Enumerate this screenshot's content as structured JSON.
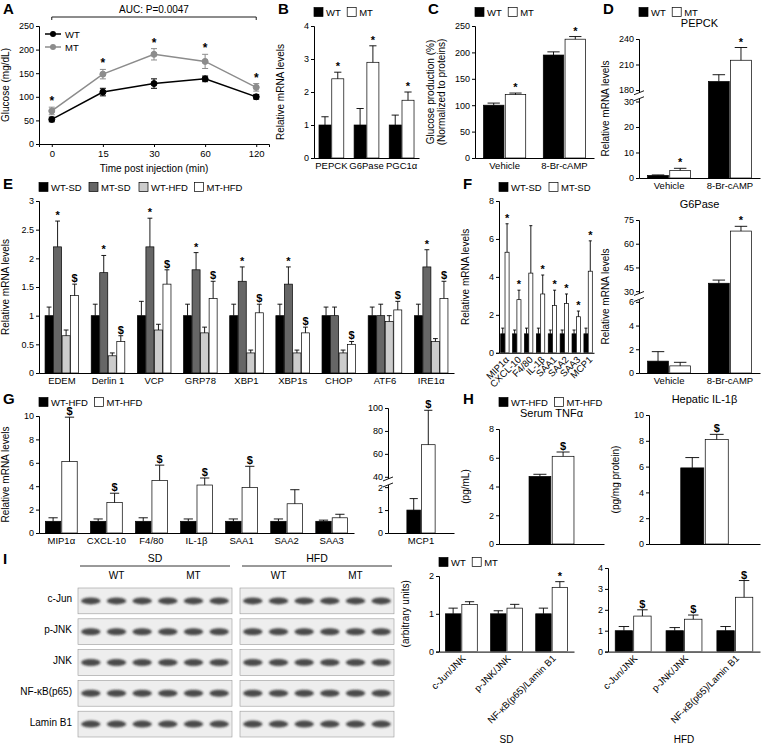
{
  "chart_data": [
    {
      "panel": "A",
      "type": "line",
      "annotation": "AUC: P=0.0047",
      "categories": [
        "0",
        "15",
        "30",
        "60",
        "120"
      ],
      "xlabel": "Time post injection (min)",
      "ylabel": "Glucose (mg/dL)",
      "ylim": [
        0,
        250
      ],
      "yticks": [
        0,
        50,
        100,
        150,
        200,
        250
      ],
      "legend": "top-left",
      "series": [
        {
          "name": "WT",
          "color": "#000000",
          "marker": "circle",
          "values": [
            52,
            110,
            128,
            138,
            100
          ],
          "errors": [
            5,
            8,
            10,
            6,
            5
          ]
        },
        {
          "name": "MT",
          "color": "#8c8c8c",
          "marker": "circle",
          "values": [
            70,
            148,
            190,
            175,
            120
          ],
          "errors": [
            8,
            10,
            12,
            15,
            8
          ],
          "significance": [
            "*",
            "*",
            "*",
            "*",
            "*"
          ]
        }
      ]
    },
    {
      "panel": "B",
      "type": "bar",
      "categories": [
        "PEPCK",
        "G6Pase",
        "PGC1α"
      ],
      "ylabel": "Relative mRNA levels",
      "ylim": [
        0,
        4
      ],
      "yticks": [
        0,
        1,
        2,
        3,
        4
      ],
      "legend": "top",
      "series": [
        {
          "name": "WT",
          "color": "#000000",
          "values": [
            1,
            1,
            1
          ],
          "errors": [
            0.25,
            0.5,
            0.3
          ]
        },
        {
          "name": "MT",
          "color": "#ffffff",
          "values": [
            2.4,
            2.9,
            1.75
          ],
          "errors": [
            0.2,
            0.5,
            0.25
          ],
          "significance": [
            "*",
            "*",
            "*"
          ]
        }
      ]
    },
    {
      "panel": "C",
      "type": "bar",
      "categories": [
        "Vehicle",
        "8-Br-cAMP"
      ],
      "ylabel": [
        "Glucose production (%)",
        "(Normalized to proteins)"
      ],
      "ylim": [
        0,
        250
      ],
      "yticks": [
        0,
        50,
        100,
        150,
        200,
        250
      ],
      "legend": "top",
      "series": [
        {
          "name": "WT",
          "color": "#000000",
          "values": [
            100,
            195
          ],
          "errors": [
            4,
            6
          ]
        },
        {
          "name": "MT",
          "color": "#ffffff",
          "values": [
            120,
            225
          ],
          "errors": [
            3,
            5
          ],
          "significance": [
            "*",
            "*"
          ]
        }
      ]
    },
    {
      "panel": "D",
      "type": "bar",
      "title": "PEPCK",
      "categories": [
        "Vehicle",
        "8-Br-cAMP"
      ],
      "ylabel": "Relative mRNA levels",
      "ylim": [
        0,
        240
      ],
      "yticks": [
        0,
        10,
        20,
        30,
        180,
        210,
        240
      ],
      "legend": "top",
      "series": [
        {
          "name": "WT",
          "color": "#000000",
          "values": [
            1,
            190
          ],
          "errors": [
            0.2,
            8
          ]
        },
        {
          "name": "MT",
          "color": "#ffffff",
          "values": [
            3,
            215
          ],
          "errors": [
            0.8,
            15
          ],
          "significance": [
            "*",
            "*"
          ]
        }
      ]
    },
    {
      "type": "bar",
      "title": "G6Pase",
      "categories": [
        "Vehicle",
        "8-Br-cAMP"
      ],
      "ylabel": "Relative mRNA levels",
      "ylim": [
        0,
        75
      ],
      "yticks": [
        0,
        2,
        4,
        6,
        30,
        45,
        60,
        75
      ],
      "series": [
        {
          "color": "#000000",
          "values": [
            1,
            35
          ],
          "errors": [
            0.8,
            2
          ]
        },
        {
          "color": "#ffffff",
          "values": [
            0.6,
            68
          ],
          "errors": [
            0.3,
            3
          ],
          "significance": [
            null,
            "*"
          ]
        }
      ]
    },
    {
      "panel": "E",
      "type": "bar",
      "categories": [
        "EDEM",
        "Derlin 1",
        "VCP",
        "GRP78",
        "XBP1",
        "XBP1s",
        "CHOP",
        "ATF6",
        "IRE1α"
      ],
      "ylabel": "Relative mRNA levels",
      "ylim": [
        0,
        3
      ],
      "yticks": [
        0,
        0.5,
        1,
        1.5,
        2,
        2.5,
        3
      ],
      "legend": "top",
      "series": [
        {
          "name": "WT-SD",
          "color": "#000000",
          "values": [
            1,
            1,
            1,
            1,
            1,
            1,
            1,
            1,
            1
          ],
          "errors": [
            0.15,
            0.2,
            0.25,
            0.2,
            0.2,
            0.2,
            0.15,
            0.15,
            0.2
          ]
        },
        {
          "name": "MT-SD",
          "color": "#666666",
          "values": [
            2.2,
            1.75,
            2.2,
            1.8,
            1.6,
            1.55,
            1.0,
            1.0,
            1.85
          ],
          "errors": [
            0.45,
            0.3,
            0.5,
            0.3,
            0.25,
            0.3,
            0.15,
            0.2,
            0.3
          ],
          "significance": [
            "*",
            "*",
            "*",
            "*",
            "*",
            "*",
            null,
            null,
            "*"
          ]
        },
        {
          "name": "WT-HFD",
          "color": "#cccccc",
          "values": [
            0.65,
            0.3,
            0.75,
            0.7,
            0.35,
            0.35,
            0.35,
            0.9,
            0.55
          ],
          "errors": [
            0.1,
            0.05,
            0.1,
            0.1,
            0.05,
            0.05,
            0.05,
            0.1,
            0.05
          ]
        },
        {
          "name": "MT-HFD",
          "color": "#ffffff",
          "values": [
            1.35,
            0.55,
            1.55,
            1.3,
            1.05,
            0.7,
            0.5,
            1.1,
            1.3
          ],
          "errors": [
            0.2,
            0.1,
            0.25,
            0.3,
            0.15,
            0.1,
            0.05,
            0.15,
            0.3
          ],
          "significance": [
            "$",
            "$",
            "$",
            "$",
            "$",
            "$",
            "$",
            "$",
            "$"
          ]
        }
      ]
    },
    {
      "panel": "F",
      "type": "bar",
      "categories": [
        "MIP1α",
        "CXCL-10",
        "F4/80",
        "IL-1β",
        "SAA1",
        "SAA2",
        "SAA3",
        "MCP1"
      ],
      "ylabel": "Relative mRNA levels",
      "ylim": [
        0,
        8
      ],
      "yticks": [
        0,
        2,
        4,
        6,
        8
      ],
      "legend": "top",
      "series": [
        {
          "name": "WT-SD",
          "color": "#000000",
          "values": [
            1,
            1,
            1,
            1,
            1,
            1,
            1,
            1
          ],
          "errors": [
            0.3,
            0.2,
            0.3,
            0.3,
            0.2,
            0.2,
            0.2,
            0.3
          ]
        },
        {
          "name": "MT-SD",
          "color": "#ffffff",
          "values": [
            5.3,
            2.8,
            4.2,
            3.1,
            2.5,
            2.6,
            1.9,
            4.3
          ],
          "errors": [
            1.5,
            0.5,
            2.5,
            1.0,
            0.8,
            0.5,
            0.3,
            1.6
          ],
          "significance": [
            "*",
            "*",
            null,
            "*",
            "*",
            "*",
            "*",
            "*"
          ]
        }
      ]
    },
    {
      "panel": "G",
      "type": "bar",
      "categories": [
        "MIP1α",
        "CXCL-10",
        "F4/80",
        "IL-1β",
        "SAA1",
        "SAA2",
        "SAA3"
      ],
      "ylabel": "Relative mRNA levels",
      "ylim": [
        0,
        10
      ],
      "yticks": [
        0,
        2,
        4,
        6,
        8,
        10
      ],
      "legend": "top",
      "series": [
        {
          "name": "WT-HFD",
          "color": "#000000",
          "values": [
            1,
            1,
            1,
            1,
            1,
            1,
            1
          ],
          "errors": [
            0.3,
            0.2,
            0.3,
            0.2,
            0.2,
            0.2,
            0.1
          ]
        },
        {
          "name": "MT-HFD",
          "color": "#ffffff",
          "values": [
            6.1,
            2.6,
            4.5,
            4.1,
            3.9,
            2.5,
            1.3
          ],
          "errors": [
            3.8,
            0.8,
            1.3,
            0.6,
            1.8,
            1.2,
            0.3
          ],
          "significance": [
            "$",
            "$",
            "$",
            "$",
            "$",
            null,
            null
          ]
        }
      ]
    },
    {
      "type": "bar",
      "categories": [
        "MCP1"
      ],
      "ylim": [
        0,
        100
      ],
      "yticks": [
        0,
        1,
        2,
        40,
        60,
        80,
        100
      ],
      "series": [
        {
          "color": "#000000",
          "values": [
            1
          ],
          "errors": [
            0.5
          ]
        },
        {
          "color": "#ffffff",
          "values": [
            68
          ],
          "errors": [
            30
          ],
          "significance": [
            "$"
          ]
        }
      ]
    },
    {
      "panel": "H",
      "type": "bar",
      "title": "Serum TNFα",
      "categories": [
        null
      ],
      "ylabel": "(pg/mL)",
      "ylim": [
        0,
        8
      ],
      "yticks": [
        0,
        2,
        4,
        6,
        8
      ],
      "legend": "top",
      "series": [
        {
          "name": "WT-HFD",
          "color": "#000000",
          "values": [
            4.7
          ],
          "errors": [
            0.15
          ]
        },
        {
          "name": "MT-HFD",
          "color": "#ffffff",
          "values": [
            6.1
          ],
          "errors": [
            0.3
          ],
          "significance": [
            "$"
          ]
        }
      ]
    },
    {
      "type": "bar",
      "title": "Hepatic IL-1β",
      "categories": [
        null
      ],
      "ylabel": "(pg/mg protein)",
      "ylim": [
        0,
        10
      ],
      "yticks": [
        0,
        2,
        4,
        6,
        8,
        10
      ],
      "series": [
        {
          "color": "#000000",
          "values": [
            5.9
          ],
          "errors": [
            0.8
          ]
        },
        {
          "color": "#ffffff",
          "values": [
            8.1
          ],
          "errors": [
            0.4
          ],
          "significance": [
            "$"
          ]
        }
      ]
    },
    {
      "panel": "I",
      "type": "blot",
      "rows": [
        "c-Jun",
        "p-JNK",
        "JNK",
        "NF-κB(p65)",
        "Lamin B1"
      ],
      "groups": [
        {
          "name": "SD",
          "lanes": [
            "WT",
            "MT"
          ]
        },
        {
          "name": "HFD",
          "lanes": [
            "WT",
            "MT"
          ]
        }
      ]
    },
    {
      "type": "bar",
      "categories": [
        "c-Jun/JNK",
        "p-JNK/JNK",
        "NF-κB(p65)/Lamin B1"
      ],
      "xlabel": "SD",
      "ylabel": "(arbitrary units)",
      "ylim": [
        0,
        2
      ],
      "yticks": [
        0,
        1,
        2
      ],
      "legend": "top",
      "series": [
        {
          "name": "WT",
          "color": "#000000",
          "values": [
            1,
            1,
            1
          ],
          "errors": [
            0.15,
            0.08,
            0.15
          ]
        },
        {
          "name": "MT",
          "color": "#ffffff",
          "values": [
            1.25,
            1.15,
            1.7
          ],
          "errors": [
            0.07,
            0.1,
            0.15
          ],
          "significance": [
            null,
            null,
            "*"
          ]
        }
      ]
    },
    {
      "type": "bar",
      "categories": [
        "c-Jun/JNK",
        "p-JNK/JNK",
        "NF-κB(p65)/Lamin B1"
      ],
      "xlabel": "HFD",
      "ylim": [
        0,
        4
      ],
      "yticks": [
        0,
        1,
        2,
        3,
        4
      ],
      "series": [
        {
          "color": "#000000",
          "values": [
            1,
            1,
            1
          ],
          "errors": [
            0.2,
            0.15,
            0.2
          ]
        },
        {
          "color": "#ffffff",
          "values": [
            1.7,
            1.55,
            2.6
          ],
          "errors": [
            0.3,
            0.2,
            0.8
          ],
          "significance": [
            "$",
            "$",
            "$"
          ]
        }
      ]
    }
  ]
}
